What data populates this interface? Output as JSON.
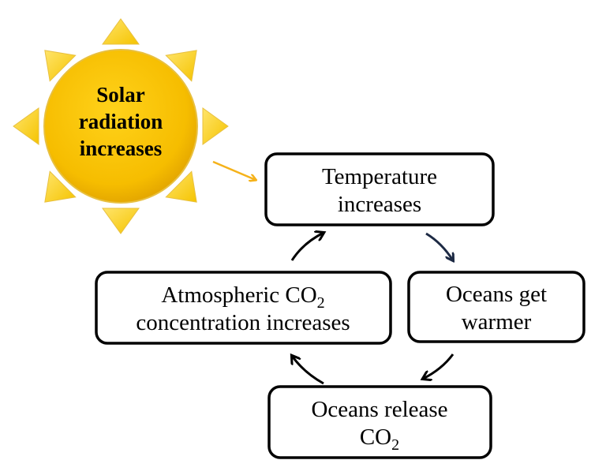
{
  "sun": {
    "lines": [
      "Solar",
      "radiation",
      "increases"
    ]
  },
  "nodes": [
    {
      "lines": [
        {
          "text": "Temperature"
        },
        {
          "text": "increases"
        }
      ]
    },
    {
      "lines": [
        {
          "text": "Oceans get"
        },
        {
          "text": "warmer"
        }
      ]
    },
    {
      "lines": [
        {
          "text": "Oceans release"
        },
        {
          "text": "CO",
          "subscript": "2"
        }
      ]
    },
    {
      "lines": [
        {
          "text": "Atmospheric CO",
          "subscript": "2"
        },
        {
          "text": "concentration increases"
        }
      ]
    }
  ]
}
